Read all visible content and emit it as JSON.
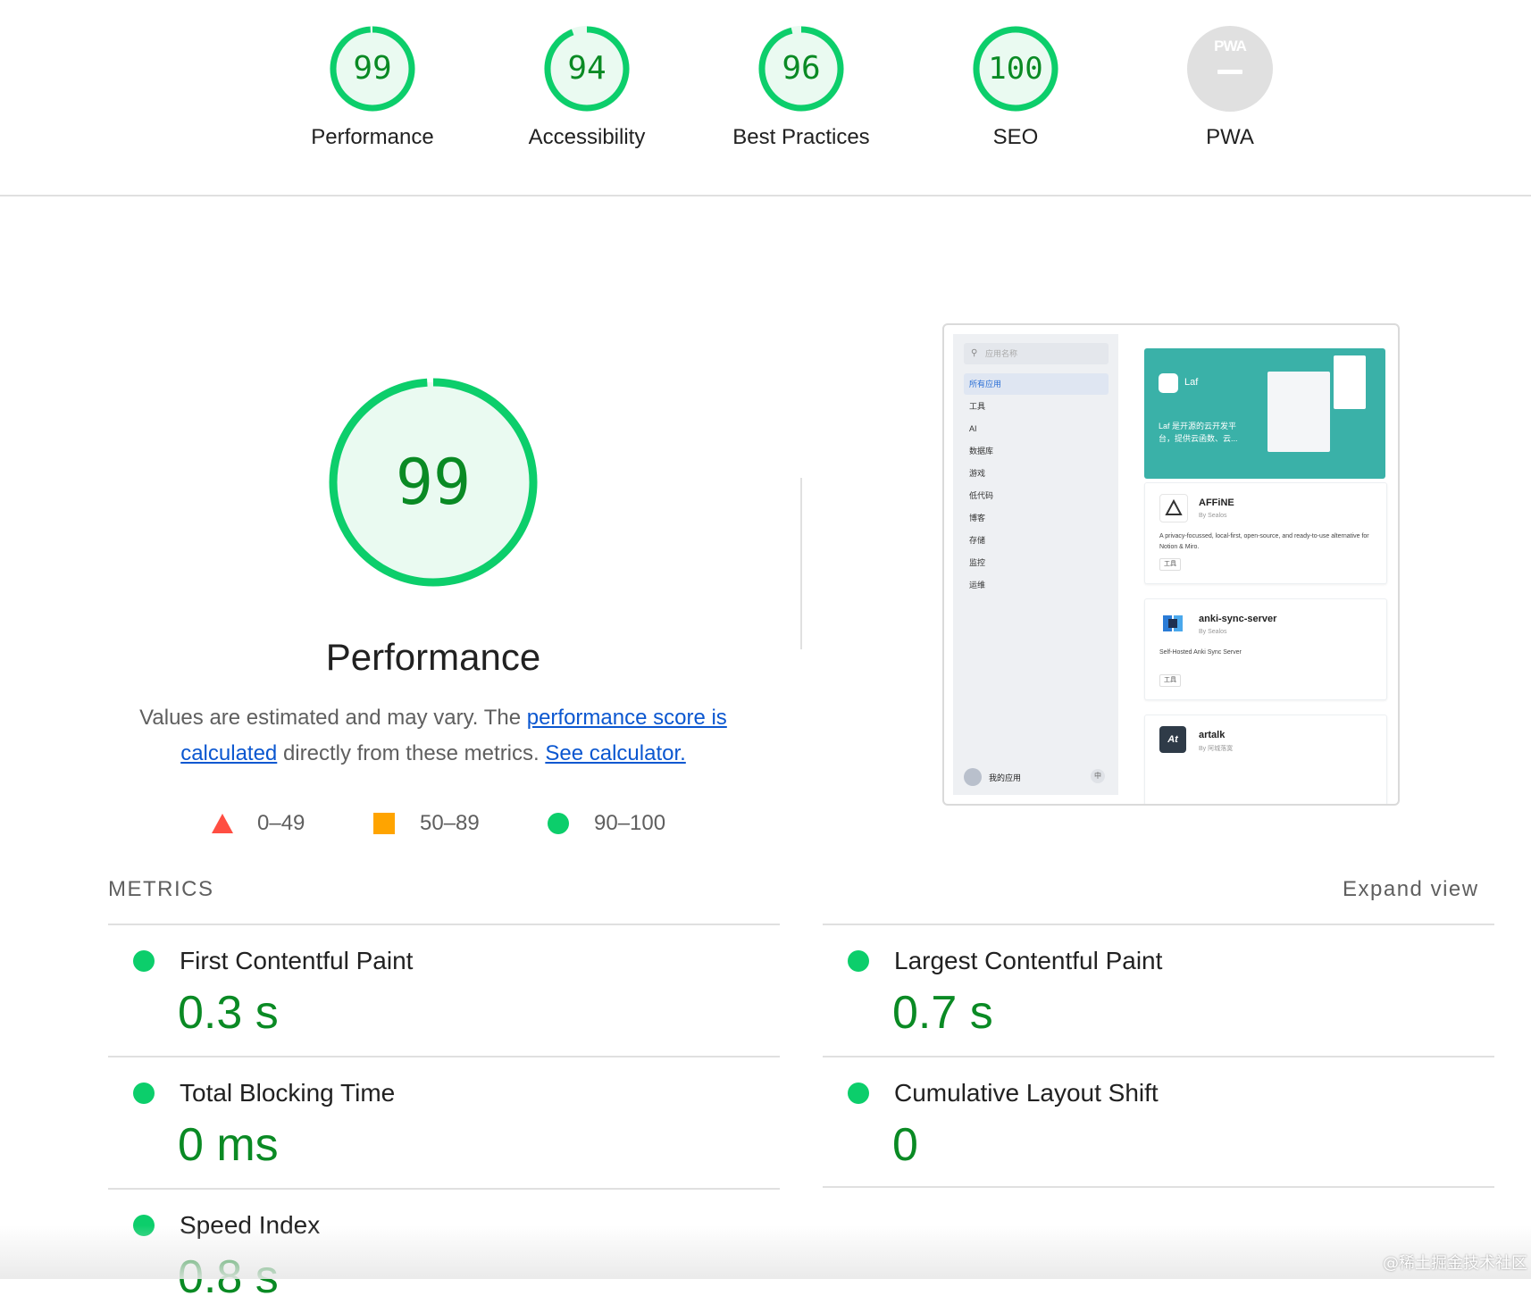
{
  "gauges": [
    {
      "score": "99",
      "label": "Performance",
      "fraction": 0.99
    },
    {
      "score": "94",
      "label": "Accessibility",
      "fraction": 0.94
    },
    {
      "score": "96",
      "label": "Best Practices",
      "fraction": 0.96
    },
    {
      "score": "100",
      "label": "SEO",
      "fraction": 1.0
    },
    {
      "score": "—",
      "label": "PWA",
      "badge": "PWA"
    }
  ],
  "main": {
    "score": "99",
    "fraction": 0.99,
    "title": "Performance",
    "desc_pre": "Values are estimated and may vary. The ",
    "desc_link1": "performance score is calculated",
    "desc_mid": " directly from these metrics. ",
    "desc_link2": "See calculator."
  },
  "legend": {
    "fail": "0–49",
    "average": "50–89",
    "pass": "90–100"
  },
  "colors": {
    "pass": "#0cce6b",
    "pass_text": "#0a8a24",
    "average": "#ffa400",
    "fail": "#ff4e42",
    "link": "#0b57d0"
  },
  "thumbnail": {
    "search_placeholder": "应用名称",
    "nav": [
      "所有应用",
      "工具",
      "AI",
      "数据库",
      "游戏",
      "低代码",
      "博客",
      "存储",
      "监控",
      "运维"
    ],
    "footer_label": "我的应用",
    "footer_lang": "中",
    "hero_name": "Laf",
    "hero_desc": "Laf 是开源的云开发平台，提供云函数、云...",
    "cards": [
      {
        "name": "AFFiNE",
        "by": "By Sealos",
        "desc": "A privacy-focussed, local-first, open-source, and ready-to-use alternative for Notion & Miro.",
        "tag": "工具"
      },
      {
        "name": "anki-sync-server",
        "by": "By Sealos",
        "desc": "Self-Hosted Anki Sync Server",
        "tag": "工具"
      },
      {
        "name": "artalk",
        "by": "By 阿城落寞",
        "icon_text": "At"
      }
    ]
  },
  "metrics": {
    "heading": "METRICS",
    "expand": "Expand view",
    "items": [
      {
        "name": "First Contentful Paint",
        "value": "0.3 s"
      },
      {
        "name": "Largest Contentful Paint",
        "value": "0.7 s"
      },
      {
        "name": "Total Blocking Time",
        "value": "0 ms"
      },
      {
        "name": "Cumulative Layout Shift",
        "value": "0"
      },
      {
        "name": "Speed Index",
        "value": "0.8 s"
      }
    ]
  },
  "watermark": "@稀土掘金技术社区"
}
